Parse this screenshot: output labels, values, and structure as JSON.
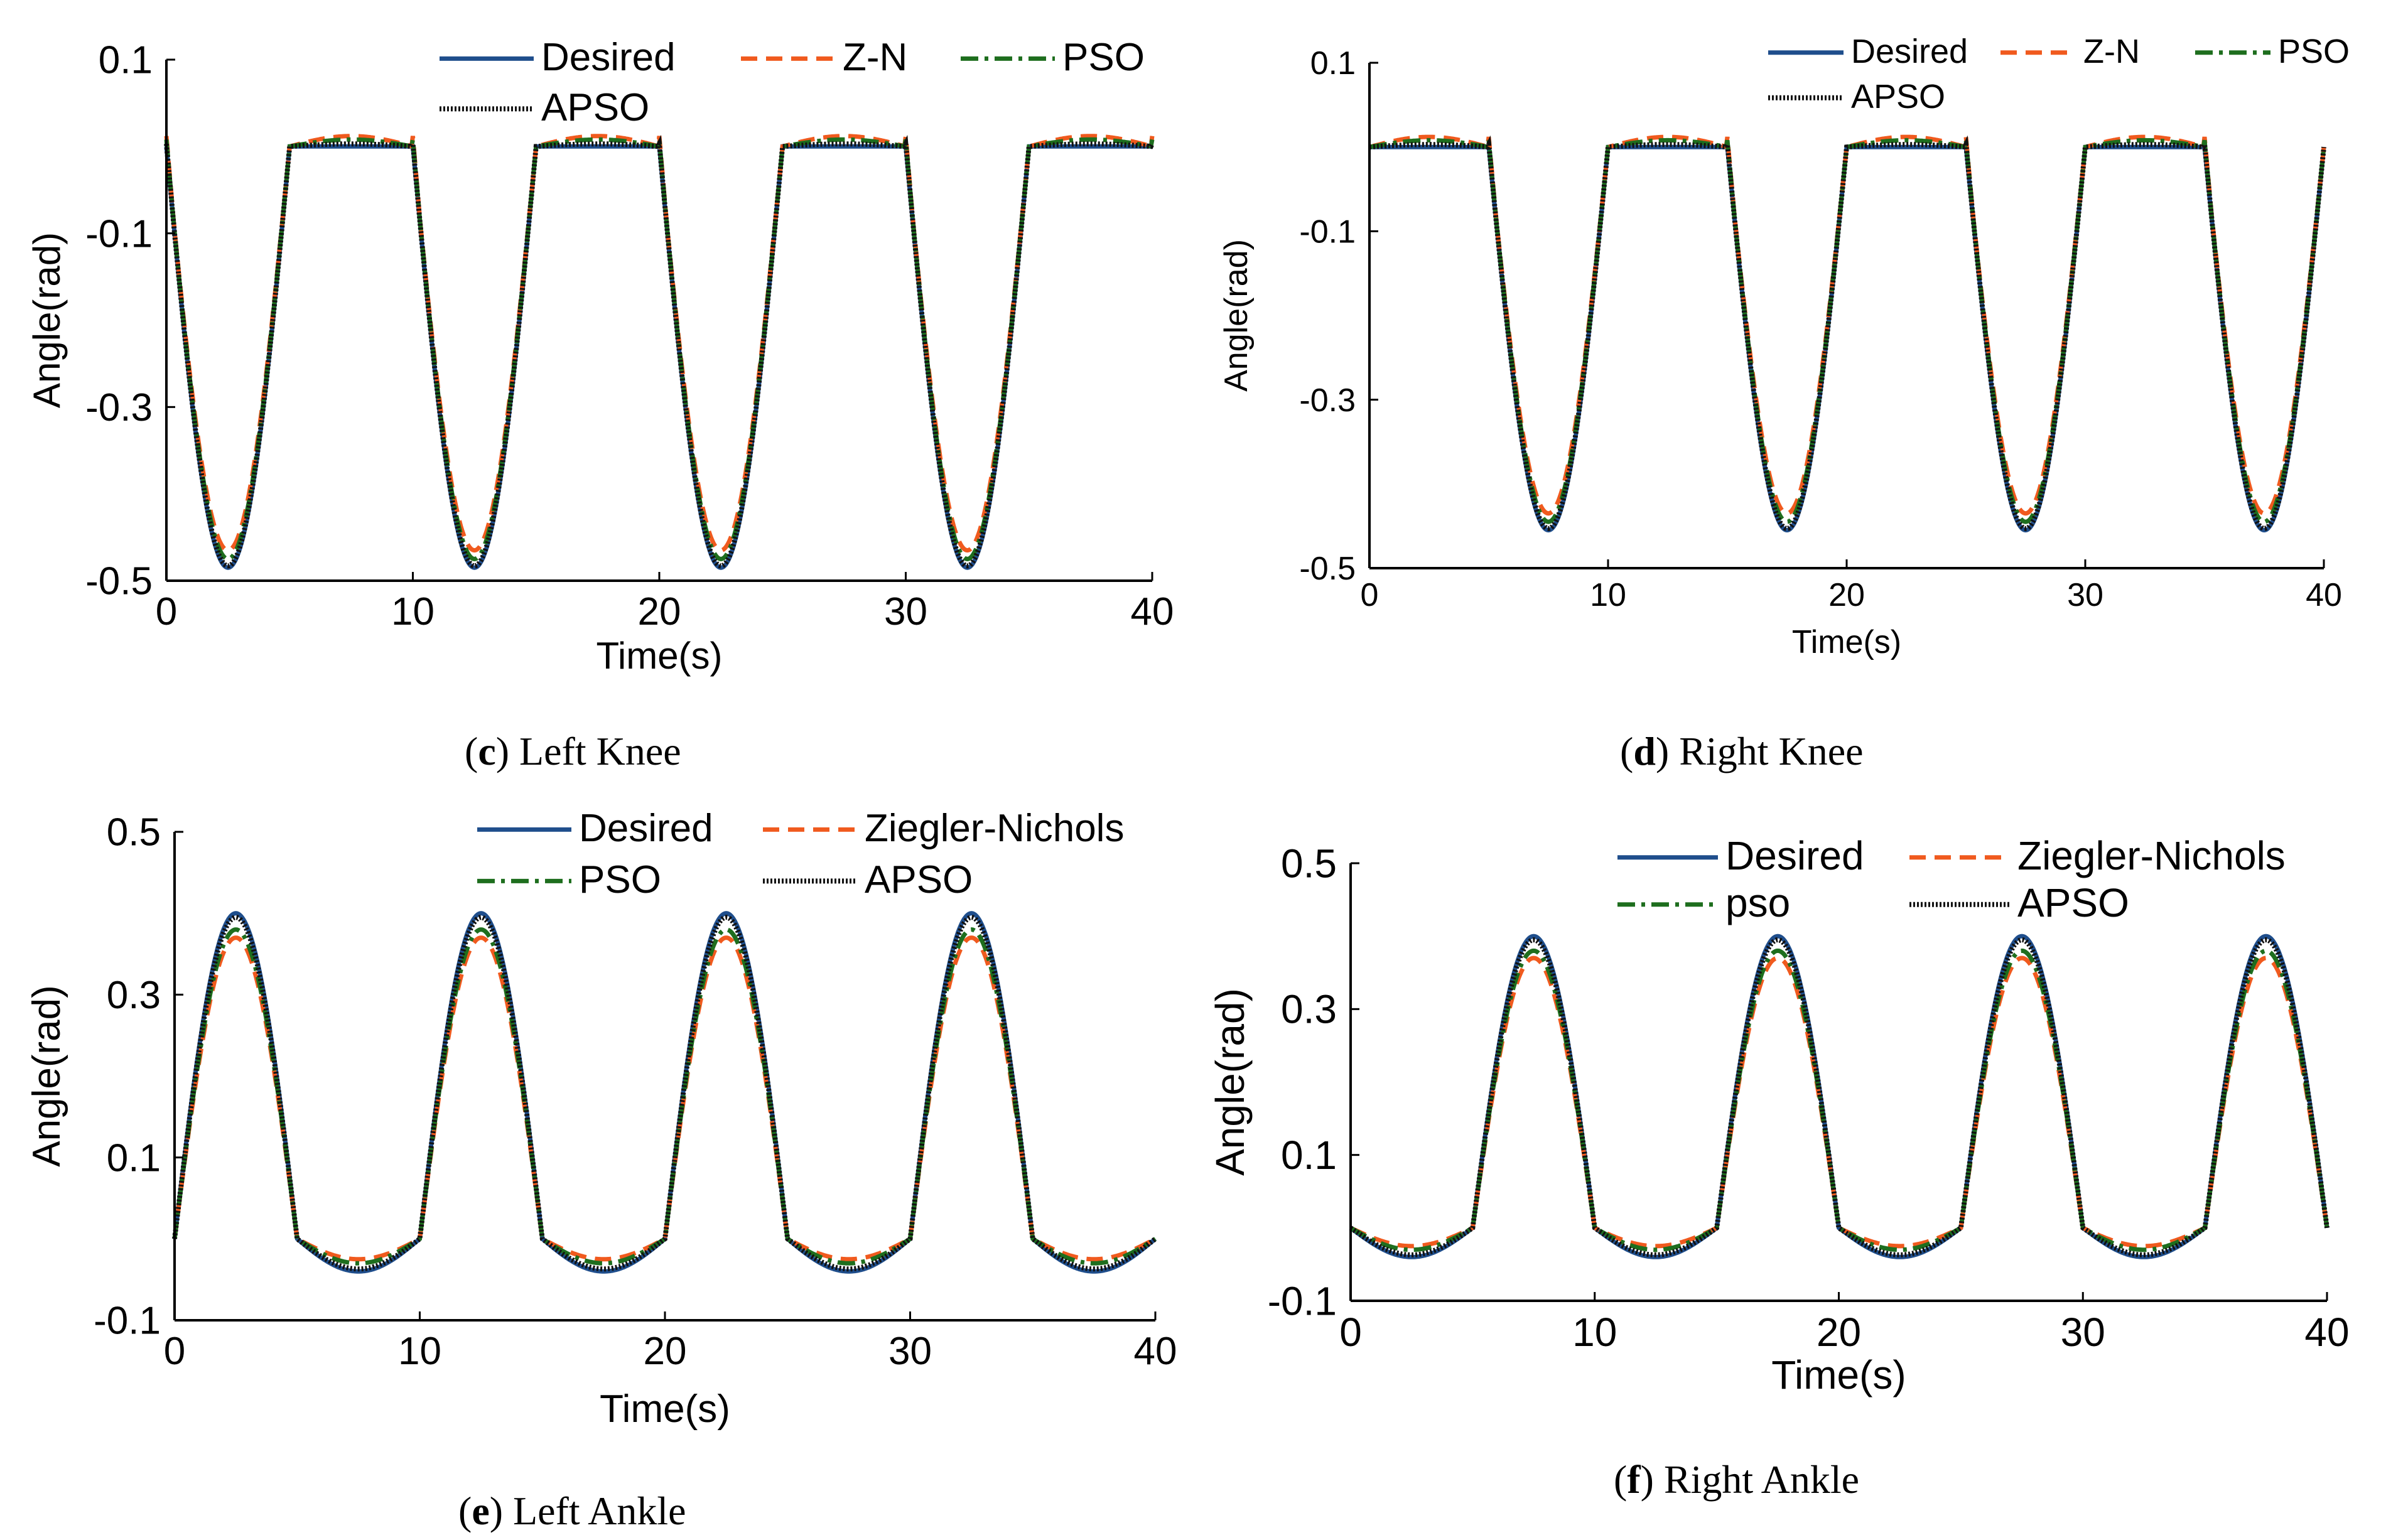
{
  "colors": {
    "desired": "#1f4e8c",
    "zn": "#f05a1e",
    "pso": "#1e6e1e",
    "apso": "#111111"
  },
  "chart_data": [
    {
      "id": "c",
      "type": "line",
      "title": "",
      "caption_letter": "c",
      "caption_text": "Left Knee",
      "xlabel": "Time(s)",
      "ylabel": "Angle(rad)",
      "xlim": [
        0,
        40
      ],
      "ylim": [
        -0.5,
        0.1
      ],
      "xticks": [
        "0",
        "10",
        "20",
        "30",
        "40"
      ],
      "yticks": [
        "0.1",
        "-0.1",
        "-0.3",
        "-0.5"
      ],
      "legend": [
        "Desired",
        "Z-N",
        "PSO",
        "APSO"
      ],
      "shape": "knee",
      "phase": 0,
      "series": [
        {
          "name": "Desired",
          "style": "solid",
          "key": "desired",
          "trough": -0.485,
          "plateau": 0.0
        },
        {
          "name": "Z-N",
          "style": "dashed",
          "key": "zn",
          "trough": -0.465,
          "plateau": 0.012
        },
        {
          "name": "PSO",
          "style": "dashdot",
          "key": "pso",
          "trough": -0.475,
          "plateau": 0.008
        },
        {
          "name": "APSO",
          "style": "dotted",
          "key": "apso",
          "trough": -0.483,
          "plateau": 0.003
        }
      ]
    },
    {
      "id": "d",
      "type": "line",
      "title": "",
      "caption_letter": "d",
      "caption_text": "Right Knee",
      "xlabel": "Time(s)",
      "ylabel": "Angle(rad)",
      "xlim": [
        0,
        40
      ],
      "ylim": [
        -0.5,
        0.1
      ],
      "xticks": [
        "0",
        "10",
        "20",
        "30",
        "40"
      ],
      "yticks": [
        "0.1",
        "-0.1",
        "-0.3",
        "-0.5"
      ],
      "legend": [
        "Desired",
        "Z-N",
        "PSO",
        "APSO"
      ],
      "shape": "knee",
      "phase": 5,
      "series": [
        {
          "name": "Desired",
          "style": "solid",
          "key": "desired",
          "trough": -0.455,
          "plateau": 0.0
        },
        {
          "name": "Z-N",
          "style": "dashed",
          "key": "zn",
          "trough": -0.435,
          "plateau": 0.012
        },
        {
          "name": "PSO",
          "style": "dashdot",
          "key": "pso",
          "trough": -0.445,
          "plateau": 0.008
        },
        {
          "name": "APSO",
          "style": "dotted",
          "key": "apso",
          "trough": -0.453,
          "plateau": 0.003
        }
      ]
    },
    {
      "id": "e",
      "type": "line",
      "title": "",
      "caption_letter": "e",
      "caption_text": "Left Ankle",
      "xlabel": "Time(s)",
      "ylabel": "Angle(rad)",
      "xlim": [
        0,
        40
      ],
      "ylim": [
        -0.1,
        0.5
      ],
      "xticks": [
        "0",
        "10",
        "20",
        "30",
        "40"
      ],
      "yticks": [
        "0.5",
        "0.3",
        "0.1",
        "-0.1"
      ],
      "legend": [
        "Desired",
        "Ziegler-Nichols",
        "PSO",
        "APSO"
      ],
      "shape": "ankle",
      "phase": 0,
      "series": [
        {
          "name": "Desired",
          "style": "solid",
          "key": "desired",
          "peak": 0.4,
          "dip": -0.04
        },
        {
          "name": "Ziegler-Nichols",
          "style": "dashed",
          "key": "zn",
          "peak": 0.37,
          "dip": -0.025
        },
        {
          "name": "PSO",
          "style": "dashdot",
          "key": "pso",
          "peak": 0.38,
          "dip": -0.03
        },
        {
          "name": "APSO",
          "style": "dotted",
          "key": "apso",
          "peak": 0.395,
          "dip": -0.037
        }
      ]
    },
    {
      "id": "f",
      "type": "line",
      "title": "",
      "caption_letter": "f",
      "caption_text": "Right Ankle",
      "xlabel": "Time(s)",
      "ylabel": "Angle(rad)",
      "xlim": [
        0,
        40
      ],
      "ylim": [
        -0.1,
        0.5
      ],
      "xticks": [
        "0",
        "10",
        "20",
        "30",
        "40"
      ],
      "yticks": [
        "0.5",
        "0.3",
        "0.1",
        "-0.1"
      ],
      "legend": [
        "Desired",
        "Ziegler-Nichols",
        "pso",
        "APSO"
      ],
      "shape": "ankle",
      "phase": 5,
      "series": [
        {
          "name": "Desired",
          "style": "solid",
          "key": "desired",
          "peak": 0.4,
          "dip": -0.04
        },
        {
          "name": "Ziegler-Nichols",
          "style": "dashed",
          "key": "zn",
          "peak": 0.37,
          "dip": -0.025
        },
        {
          "name": "pso",
          "style": "dashdot",
          "key": "pso",
          "peak": 0.38,
          "dip": -0.03
        },
        {
          "name": "APSO",
          "style": "dotted",
          "key": "apso",
          "peak": 0.395,
          "dip": -0.037
        }
      ]
    }
  ]
}
